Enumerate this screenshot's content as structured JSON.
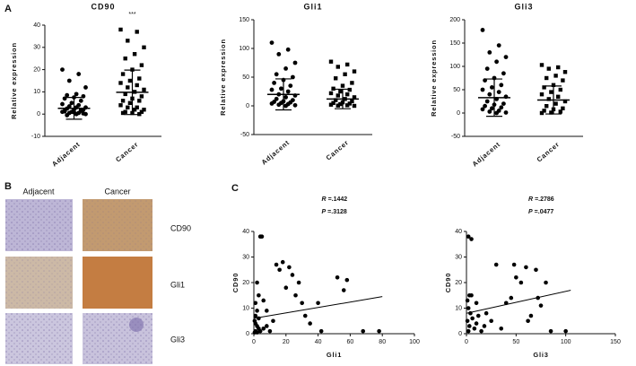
{
  "panel_labels": [
    "A",
    "B",
    "C"
  ],
  "histology": {
    "columns": [
      "Adjacent",
      "Cancer"
    ],
    "rows": [
      "CD90",
      "Gli1",
      "Gli3"
    ]
  },
  "chart_data": [
    {
      "type": "dot",
      "title": "CD90",
      "ylabel": "Relative expression",
      "categories": [
        "Adjacent",
        "Cancer"
      ],
      "annotation": "***",
      "groups": [
        {
          "values": [
            20,
            18,
            15,
            12,
            9,
            8.5,
            8,
            7.5,
            7,
            6,
            5,
            4.5,
            4,
            3.5,
            3,
            3,
            2.5,
            2,
            2,
            1.5,
            1.5,
            1,
            1,
            0.5,
            0.5,
            0,
            0,
            -0.5,
            0.3,
            0.8,
            1.2,
            1.8
          ],
          "mean": 2.6,
          "sd": 4.9
        },
        {
          "values": [
            38,
            37,
            33,
            30,
            27,
            25,
            22,
            20,
            18,
            16,
            15,
            14,
            13,
            12,
            11,
            10,
            9,
            8,
            7,
            6,
            6,
            5,
            4,
            3,
            3,
            2,
            2,
            1,
            1,
            0.5,
            0.5,
            0
          ],
          "mean": 9.8,
          "sd": 10
        }
      ],
      "ylim": [
        -10,
        40
      ],
      "yticks": [
        -10,
        0,
        10,
        20,
        30,
        40
      ]
    },
    {
      "type": "dot",
      "title": "Gli1",
      "ylabel": "Relative expression",
      "categories": [
        "Adjacent",
        "Cancer"
      ],
      "groups": [
        {
          "values": [
            110,
            98,
            90,
            75,
            65,
            55,
            50,
            45,
            40,
            35,
            30,
            28,
            25,
            20,
            18,
            15,
            12,
            10,
            8,
            7,
            6,
            5,
            4,
            3,
            2,
            1,
            0
          ],
          "mean": 20,
          "sd": 27
        },
        {
          "values": [
            77,
            72,
            68,
            60,
            55,
            48,
            40,
            35,
            30,
            28,
            25,
            22,
            20,
            18,
            15,
            12,
            10,
            8,
            6,
            5,
            4,
            3,
            2,
            1,
            0.5,
            0
          ],
          "mean": 12,
          "sd": 17
        }
      ],
      "ylim": [
        -50,
        150
      ],
      "yticks": [
        -50,
        0,
        50,
        100,
        150
      ]
    },
    {
      "type": "dot",
      "title": "Gli3",
      "ylabel": "Relative expression",
      "categories": [
        "Adjacent",
        "Cancer"
      ],
      "groups": [
        {
          "values": [
            178,
            145,
            130,
            120,
            110,
            95,
            85,
            75,
            70,
            60,
            55,
            50,
            45,
            40,
            35,
            30,
            25,
            20,
            18,
            15,
            12,
            10,
            8,
            5,
            3,
            1,
            0
          ],
          "mean": 33,
          "sd": 40
        },
        {
          "values": [
            103,
            98,
            95,
            88,
            80,
            75,
            70,
            60,
            55,
            50,
            45,
            40,
            35,
            30,
            25,
            20,
            15,
            10,
            8,
            5,
            3,
            1,
            0
          ],
          "mean": 28,
          "sd": 30
        }
      ],
      "ylim": [
        -50,
        200
      ],
      "yticks": [
        -50,
        0,
        50,
        100,
        150,
        200
      ]
    },
    {
      "type": "scatter",
      "xlabel": "Gli1",
      "ylabel": "CD90",
      "x": [
        4,
        5,
        2,
        3,
        1,
        2,
        1,
        0.5,
        1,
        2,
        3,
        1,
        0.5,
        2,
        4,
        6,
        8,
        10,
        12,
        14,
        16,
        18,
        20,
        22,
        24,
        26,
        28,
        30,
        32,
        35,
        40,
        42,
        52,
        56,
        58,
        68,
        78,
        8,
        6,
        3
      ],
      "y": [
        38,
        38,
        20,
        15,
        12,
        9,
        7,
        5,
        4,
        3,
        2,
        1,
        0.5,
        0.5,
        1,
        2,
        3,
        1,
        5,
        27,
        25,
        28,
        18,
        26,
        23,
        15,
        20,
        12,
        7,
        4,
        12,
        1,
        22,
        17,
        21,
        1,
        1,
        9,
        13,
        6
      ],
      "trend": {
        "x": [
          0,
          80
        ],
        "y": [
          6,
          14.5
        ]
      },
      "stats": [
        {
          "symbol": "R",
          "text": "=.1442"
        },
        {
          "symbol": "P",
          "text": "=.3128"
        }
      ],
      "xlim": [
        0,
        100
      ],
      "xticks": [
        0,
        20,
        40,
        60,
        80,
        100
      ],
      "ylim": [
        0,
        40
      ],
      "yticks": [
        0,
        10,
        20,
        30,
        40
      ]
    },
    {
      "type": "scatter",
      "xlabel": "Gli3",
      "ylabel": "CD90",
      "x": [
        2,
        5,
        3,
        1,
        2,
        4,
        6,
        1,
        3,
        2,
        8,
        10,
        12,
        15,
        18,
        20,
        25,
        30,
        35,
        40,
        45,
        48,
        50,
        55,
        60,
        62,
        65,
        70,
        72,
        75,
        80,
        85,
        100,
        10,
        5
      ],
      "y": [
        38,
        37,
        15,
        13,
        10,
        8,
        6,
        5,
        3,
        1,
        2,
        4,
        7,
        1,
        3,
        8,
        5,
        27,
        2,
        12,
        14,
        27,
        22,
        20,
        26,
        5,
        7,
        25,
        14,
        11,
        20,
        1,
        1,
        12,
        15
      ],
      "trend": {
        "x": [
          0,
          105
        ],
        "y": [
          8,
          17
        ]
      },
      "stats": [
        {
          "symbol": "R",
          "text": "=.2786"
        },
        {
          "symbol": "P",
          "text": "=.0477"
        }
      ],
      "xlim": [
        0,
        150
      ],
      "xticks": [
        0,
        50,
        100,
        150
      ],
      "ylim": [
        0,
        40
      ],
      "yticks": [
        0,
        10,
        20,
        30,
        40
      ]
    }
  ]
}
